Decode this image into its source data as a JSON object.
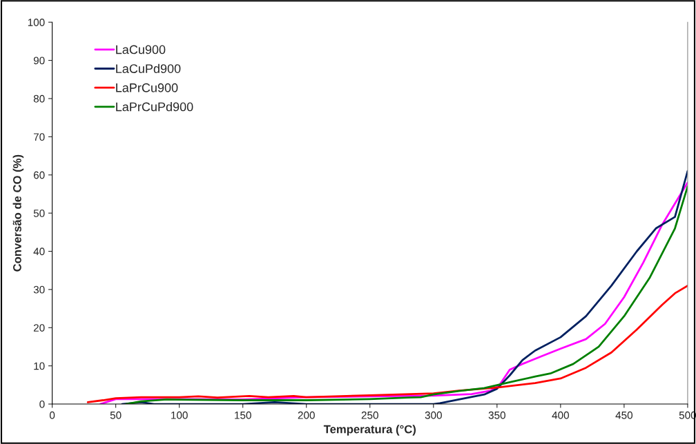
{
  "chart_data": {
    "type": "line",
    "xlabel": "Temperatura (°C)",
    "ylabel": "Conversão de CO (%)",
    "xlim": [
      0,
      500
    ],
    "ylim": [
      0,
      100
    ],
    "xticks": [
      0,
      50,
      100,
      150,
      200,
      250,
      300,
      350,
      400,
      450,
      500
    ],
    "yticks": [
      0,
      10,
      20,
      30,
      40,
      50,
      60,
      70,
      80,
      90,
      100
    ],
    "grid": false,
    "legend": "top left",
    "marker": "none",
    "line_style": "solid",
    "series": [
      {
        "name": "LaCu900",
        "color": "#ff00ff",
        "x": [
          38,
          50,
          100,
          150,
          200,
          250,
          300,
          330,
          345,
          352,
          360,
          370,
          385,
          400,
          420,
          435,
          450,
          465,
          480,
          500
        ],
        "values": [
          0,
          1.3,
          1.3,
          1.2,
          1.8,
          2.0,
          2.2,
          2.6,
          3.5,
          5,
          9,
          10.5,
          12.5,
          14.5,
          17,
          21,
          28,
          37,
          47,
          58
        ]
      },
      {
        "name": "LaCuPd900",
        "color": "#002060",
        "x": [
          55,
          70,
          80,
          100,
          150,
          175,
          200,
          250,
          300,
          305,
          320,
          340,
          350,
          360,
          370,
          380,
          400,
          420,
          440,
          460,
          475,
          490,
          500
        ],
        "values": [
          0,
          0.5,
          0,
          0,
          0,
          0.5,
          0,
          0,
          0,
          0.2,
          1.2,
          2.5,
          4,
          7.5,
          11.5,
          14,
          17.5,
          23,
          31,
          40,
          46,
          49,
          61
        ]
      },
      {
        "name": "LaPrCu900",
        "color": "#ff0000",
        "x": [
          28,
          40,
          50,
          70,
          100,
          115,
          130,
          155,
          170,
          190,
          200,
          250,
          300,
          320,
          350,
          380,
          400,
          420,
          440,
          460,
          480,
          490,
          500
        ],
        "values": [
          0.5,
          1.0,
          1.5,
          1.8,
          1.8,
          2.0,
          1.7,
          2.1,
          1.8,
          2.1,
          1.8,
          2.3,
          2.8,
          3.5,
          4.3,
          5.5,
          6.7,
          9.5,
          13.5,
          19.5,
          26,
          29,
          31
        ]
      },
      {
        "name": "LaPrCuPd900",
        "color": "#008000",
        "x": [
          58,
          70,
          90,
          150,
          200,
          250,
          280,
          290,
          300,
          320,
          340,
          360,
          380,
          392,
          410,
          430,
          450,
          470,
          490,
          500
        ],
        "values": [
          0,
          0.7,
          1.2,
          1.0,
          1.0,
          1.3,
          1.7,
          1.8,
          2.5,
          3.4,
          4.2,
          5.7,
          7.2,
          8,
          10.5,
          15,
          23,
          33,
          46,
          57
        ]
      }
    ]
  }
}
